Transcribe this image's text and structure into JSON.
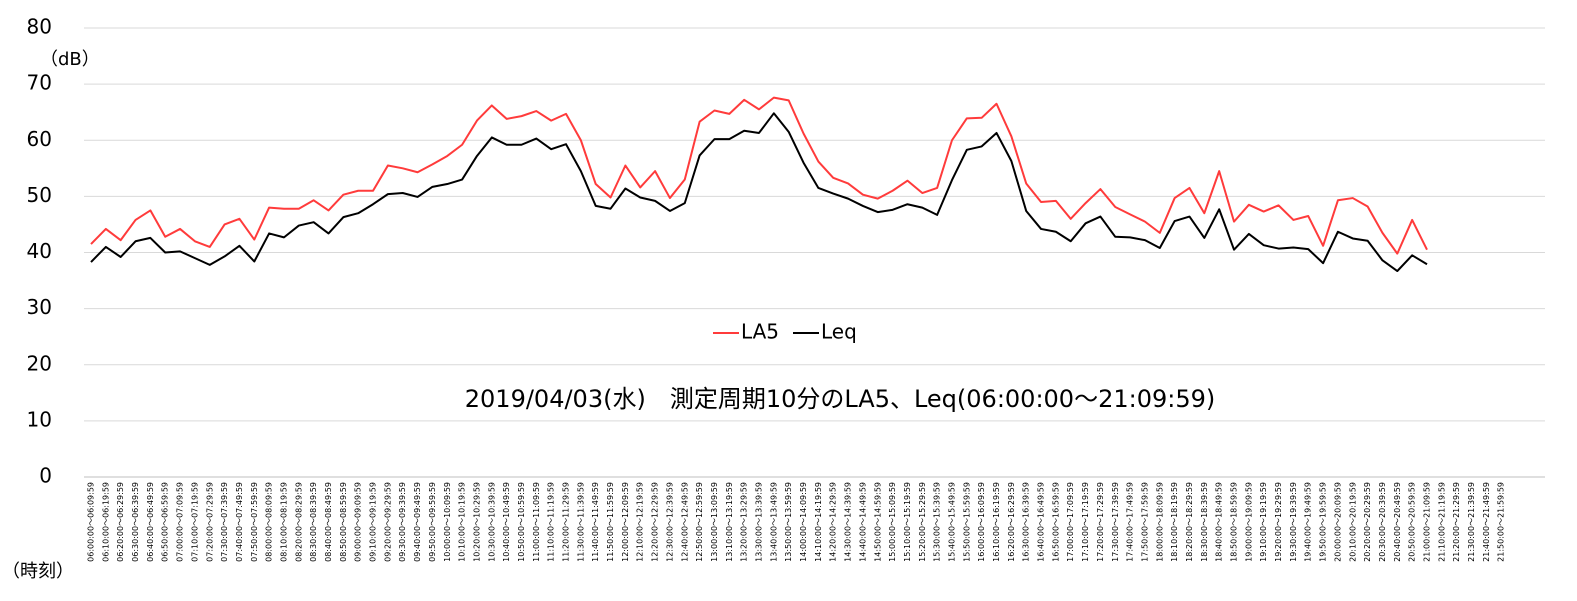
{
  "chart_data": {
    "type": "line",
    "ylabel": "（dB）",
    "xlabel": "（時刻）",
    "annotation": "2019/04/03(水)　測定周期10分のLA5、Leq(06:00:00～21:09:59)",
    "legend": "center",
    "grid": true,
    "ylim": [
      0,
      80
    ],
    "yticks": [
      0,
      10,
      20,
      30,
      40,
      50,
      60,
      70,
      80
    ],
    "categories": [
      "06:00:00～06:09:59",
      "06:10:00～06:19:59",
      "06:20:00～06:29:59",
      "06:30:00～06:39:59",
      "06:40:00～06:49:59",
      "06:50:00～06:59:59",
      "07:00:00～07:09:59",
      "07:10:00～07:19:59",
      "07:20:00～07:29:59",
      "07:30:00～07:39:59",
      "07:40:00～07:49:59",
      "07:50:00～07:59:59",
      "08:00:00～08:09:59",
      "08:10:00～08:19:59",
      "08:20:00～08:29:59",
      "08:30:00～08:39:59",
      "08:40:00～08:49:59",
      "08:50:00～08:59:59",
      "09:00:00～09:09:59",
      "09:10:00～09:19:59",
      "09:20:00～09:29:59",
      "09:30:00～09:39:59",
      "09:40:00～09:49:59",
      "09:50:00～09:59:59",
      "10:00:00～10:09:59",
      "10:10:00～10:19:59",
      "10:20:00～10:29:59",
      "10:30:00～10:39:59",
      "10:40:00～10:49:59",
      "10:50:00～10:59:59",
      "11:00:00～11:09:59",
      "11:10:00～11:19:59",
      "11:20:00～11:29:59",
      "11:30:00～11:39:59",
      "11:40:00～11:49:59",
      "11:50:00～11:59:59",
      "12:00:00～12:09:59",
      "12:10:00～12:19:59",
      "12:20:00～12:29:59",
      "12:30:00～12:39:59",
      "12:40:00～12:49:59",
      "12:50:00～12:59:59",
      "13:00:00～13:09:59",
      "13:10:00～13:19:59",
      "13:20:00～13:29:59",
      "13:30:00～13:39:59",
      "13:40:00～13:49:59",
      "13:50:00～13:59:59",
      "14:00:00～14:09:59",
      "14:10:00～14:19:59",
      "14:20:00～14:29:59",
      "14:30:00～14:39:59",
      "14:40:00～14:49:59",
      "14:50:00～14:59:59",
      "15:00:00～15:09:59",
      "15:10:00～15:19:59",
      "15:20:00～15:29:59",
      "15:30:00～15:39:59",
      "15:40:00～15:49:59",
      "15:50:00～15:59:59",
      "16:00:00～16:09:59",
      "16:10:00～16:19:59",
      "16:20:00～16:29:59",
      "16:30:00～16:39:59",
      "16:40:00～16:49:59",
      "16:50:00～16:59:59",
      "17:00:00～17:09:59",
      "17:10:00～17:19:59",
      "17:20:00～17:29:59",
      "17:30:00～17:39:59",
      "17:40:00～17:49:59",
      "17:50:00～17:59:59",
      "18:00:00～18:09:59",
      "18:10:00～18:19:59",
      "18:20:00～18:29:59",
      "18:30:00～18:39:59",
      "18:40:00～18:49:59",
      "18:50:00～18:59:59",
      "19:00:00～19:09:59",
      "19:10:00～19:19:59",
      "19:20:00～19:29:59",
      "19:30:00～19:39:59",
      "19:40:00～19:49:59",
      "19:50:00～19:59:59",
      "20:00:00～20:09:59",
      "20:10:00～20:19:59",
      "20:20:00～20:29:59",
      "20:30:00～20:39:59",
      "20:40:00～20:49:59",
      "20:50:00～20:59:59",
      "21:00:00～21:09:59",
      "21:10:00～21:19:59",
      "21:20:00～21:29:59",
      "21:30:00～21:39:59",
      "21:40:00～21:49:59",
      "21:50:00～21:59:59"
    ],
    "series": [
      {
        "name": "LA5",
        "color": "#ff3b3b",
        "values": [
          41.5,
          44.2,
          42.2,
          45.8,
          47.5,
          42.8,
          44.2,
          42,
          41,
          45,
          46,
          42.3,
          48,
          47.8,
          47.8,
          49.3,
          47.5,
          50.3,
          51,
          51,
          55.5,
          55,
          54.3,
          55.7,
          57.2,
          59.2,
          63.5,
          66.2,
          63.8,
          64.3,
          65.2,
          63.5,
          64.7,
          60,
          52.2,
          49.8,
          55.5,
          51.6,
          54.5,
          49.7,
          53,
          63.3,
          65.3,
          64.7,
          67.2,
          65.5,
          67.6,
          67.1,
          61.2,
          56.2,
          53.3,
          52.3,
          50.3,
          49.6,
          51,
          52.8,
          50.6,
          51.5,
          60,
          63.9,
          64,
          66.5,
          60.7,
          52.3,
          49,
          49.2,
          46,
          48.8,
          51.3,
          48.1,
          46.8,
          45.5,
          43.5,
          49.7,
          51.5,
          47,
          54.5,
          45.5,
          48.5,
          47.3,
          48.4,
          45.8,
          46.5,
          41.2,
          49.3,
          49.7,
          48.2,
          43.5,
          39.8,
          45.8,
          40.5,
          null,
          null,
          null,
          null,
          null
        ]
      },
      {
        "name": "Leq",
        "color": "#000000",
        "values": [
          38.3,
          41,
          39.2,
          42,
          42.6,
          40,
          40.2,
          39,
          37.8,
          39.3,
          41.2,
          38.4,
          43.4,
          42.7,
          44.8,
          45.4,
          43.4,
          46.3,
          47,
          48.6,
          50.4,
          50.6,
          49.9,
          51.7,
          52.2,
          53,
          57.2,
          60.5,
          59.2,
          59.2,
          60.3,
          58.4,
          59.3,
          54.5,
          48.3,
          47.8,
          51.4,
          49.8,
          49.2,
          47.4,
          48.8,
          57.3,
          60.2,
          60.2,
          61.7,
          61.3,
          64.8,
          61.5,
          56,
          51.5,
          50.5,
          49.6,
          48.3,
          47.2,
          47.6,
          48.6,
          48,
          46.7,
          52.9,
          58.3,
          58.9,
          61.3,
          56.3,
          47.4,
          44.2,
          43.7,
          42,
          45.2,
          46.4,
          42.8,
          42.7,
          42.2,
          40.8,
          45.6,
          46.4,
          42.6,
          47.7,
          40.5,
          43.3,
          41.3,
          40.7,
          40.9,
          40.6,
          38.1,
          43.7,
          42.5,
          42.1,
          38.6,
          36.7,
          39.5,
          37.9,
          null,
          null,
          null,
          null,
          null
        ]
      }
    ]
  }
}
